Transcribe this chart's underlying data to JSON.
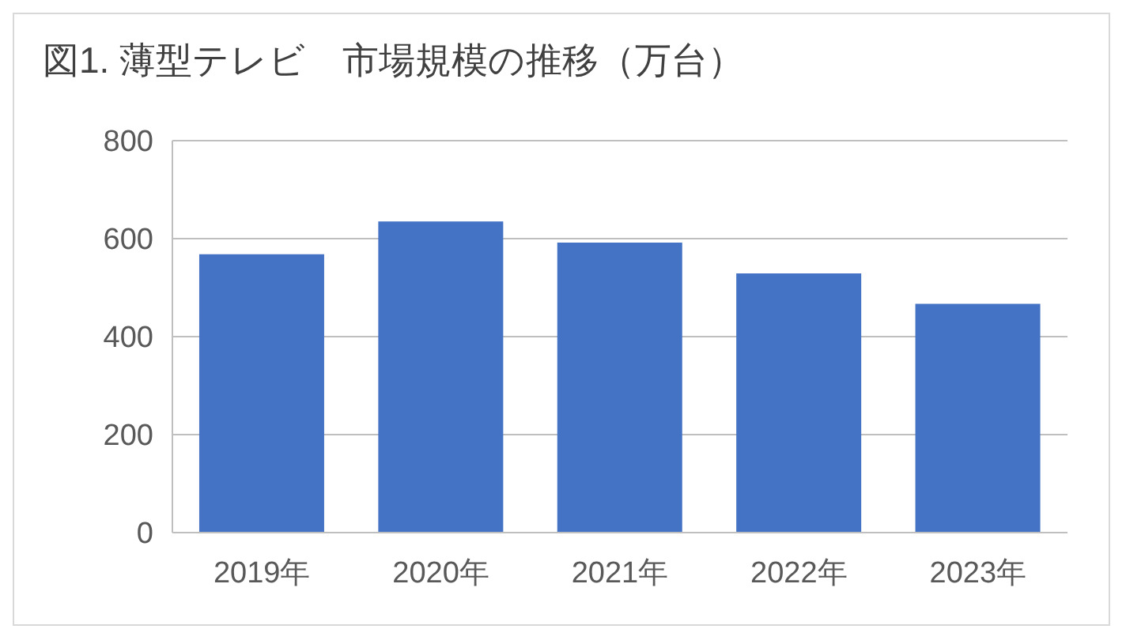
{
  "chart_data": {
    "type": "bar",
    "title": "図1. 薄型テレビ　市場規模の推移（万台）",
    "categories": [
      "2019年",
      "2020年",
      "2021年",
      "2022年",
      "2023年"
    ],
    "values": [
      568,
      635,
      592,
      529,
      467
    ],
    "color": "#4472c4",
    "ylim": [
      0,
      800
    ],
    "yticks": [
      0,
      200,
      400,
      600,
      800
    ],
    "grid": "y"
  }
}
